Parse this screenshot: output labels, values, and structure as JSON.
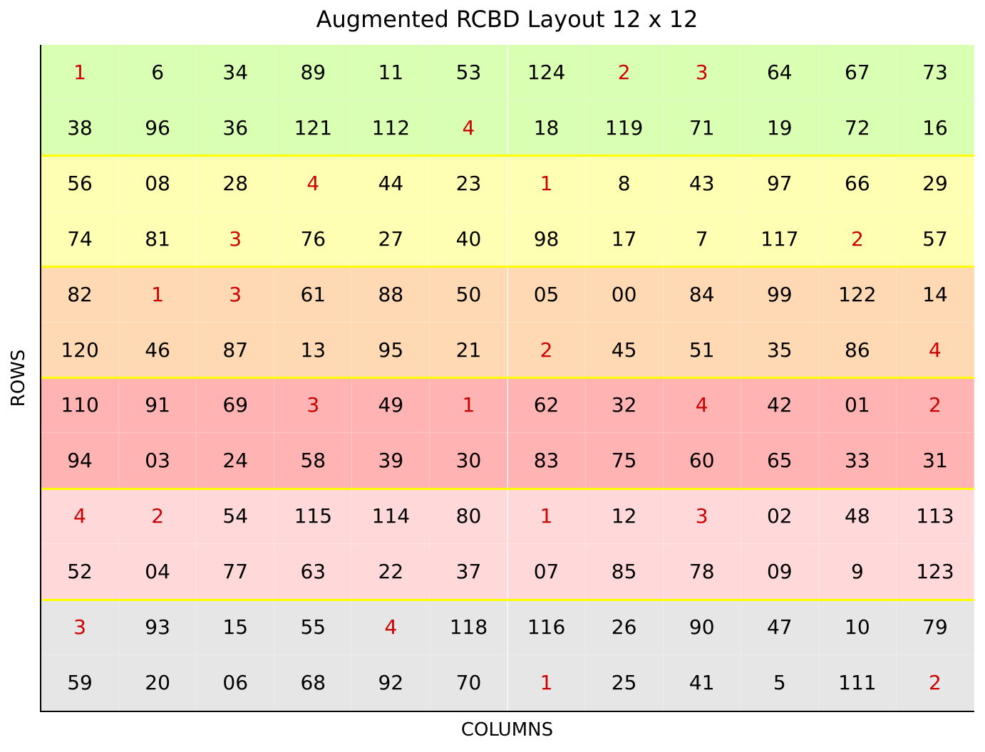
{
  "chart_data": {
    "type": "heatmap",
    "title": "Augmented RCBD Layout 12 x 12",
    "xlabel": "COLUMNS",
    "ylabel": "ROWS",
    "rows": 12,
    "cols": 12,
    "block_colors": [
      "#d9ffb3",
      "#ffffb3",
      "#ffd9b3",
      "#ffb3b3",
      "#ffd9d9",
      "#e6e6e6"
    ],
    "block_separator_color": "#ffff00",
    "check_text_color": "#cc0000",
    "entry_text_color": "#000000",
    "checks": [
      "1",
      "2",
      "3",
      "4"
    ],
    "grid": [
      [
        "1",
        "6",
        "34",
        "89",
        "11",
        "53",
        "124",
        "2",
        "3",
        "64",
        "67",
        "73"
      ],
      [
        "38",
        "96",
        "36",
        "121",
        "112",
        "4",
        "18",
        "119",
        "71",
        "19",
        "72",
        "16"
      ],
      [
        "56",
        "08",
        "28",
        "4",
        "44",
        "23",
        "1",
        "8",
        "43",
        "97",
        "66",
        "29"
      ],
      [
        "74",
        "81",
        "3",
        "76",
        "27",
        "40",
        "98",
        "17",
        "7",
        "117",
        "2",
        "57"
      ],
      [
        "82",
        "1",
        "3",
        "61",
        "88",
        "50",
        "05",
        "00",
        "84",
        "99",
        "122",
        "14"
      ],
      [
        "120",
        "46",
        "87",
        "13",
        "95",
        "21",
        "2",
        "45",
        "51",
        "35",
        "86",
        "4"
      ],
      [
        "110",
        "91",
        "69",
        "3",
        "49",
        "1",
        "62",
        "32",
        "4",
        "42",
        "01",
        "2"
      ],
      [
        "94",
        "03",
        "24",
        "58",
        "39",
        "30",
        "83",
        "75",
        "60",
        "65",
        "33",
        "31"
      ],
      [
        "4",
        "2",
        "54",
        "115",
        "114",
        "80",
        "1",
        "12",
        "3",
        "02",
        "48",
        "113"
      ],
      [
        "52",
        "04",
        "77",
        "63",
        "22",
        "37",
        "07",
        "85",
        "78",
        "09",
        "9",
        "123"
      ],
      [
        "3",
        "93",
        "15",
        "55",
        "4",
        "118",
        "116",
        "26",
        "90",
        "47",
        "10",
        "79"
      ],
      [
        "59",
        "20",
        "06",
        "68",
        "92",
        "70",
        "1",
        "25",
        "41",
        "5",
        "111",
        "2"
      ]
    ],
    "rows_per_block": 2
  }
}
